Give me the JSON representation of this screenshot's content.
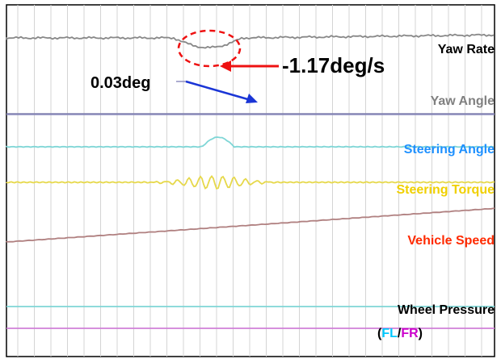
{
  "chart_data": {
    "type": "line",
    "grid": true,
    "annotations": [
      {
        "text": "-1.17deg/s",
        "color": "#000000"
      },
      {
        "text": "0.03deg",
        "color": "#000000"
      }
    ],
    "traces": [
      {
        "name": "Yaw Rate",
        "label_color": "#000000",
        "line_color": "#888888"
      },
      {
        "name": "Yaw Angle",
        "label_color": "#808080",
        "line_color": "#8080b0"
      },
      {
        "name": "Steering Angle",
        "label_color": "#1e90ff",
        "line_color": "#7fd6d6"
      },
      {
        "name": "Steering Torque",
        "label_color": "#f0d000",
        "line_color": "#e6d84a"
      },
      {
        "name": "Vehicle Speed",
        "label_color": "#ff2a00",
        "line_color": "#b08080"
      },
      {
        "name": "Wheel Pressure",
        "label_color": "#000000",
        "line_color": "#7fd6d6"
      }
    ],
    "wheel_pressure_legend": {
      "open": "(",
      "fl": "FL",
      "slash": "/",
      "fr": "FR",
      "close": ")",
      "fl_color": "#00c8ff",
      "fr_color": "#cc00cc"
    }
  }
}
